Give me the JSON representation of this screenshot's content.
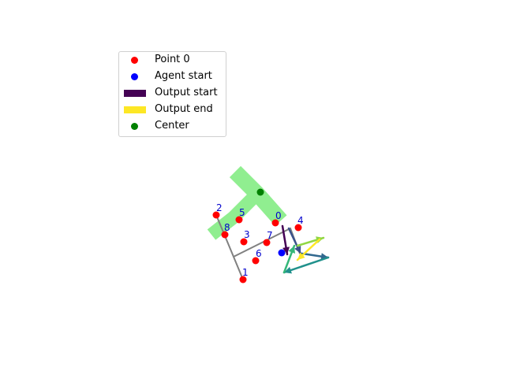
{
  "legend": {
    "items": [
      {
        "label": "Point 0",
        "kind": "dot",
        "color": "#ff0000"
      },
      {
        "label": "Agent start",
        "kind": "dot",
        "color": "#0000ff"
      },
      {
        "label": "Output start",
        "kind": "patch",
        "color": "#440154"
      },
      {
        "label": "Output end",
        "kind": "patch",
        "color": "#fde725"
      },
      {
        "label": "Center",
        "kind": "dot",
        "color": "#008000"
      }
    ]
  },
  "colors": {
    "region": "#90ee90",
    "path": "#808080",
    "point": "#ff0000",
    "point_label": "#0000cc",
    "agent": "#0000ff",
    "center": "#008000"
  },
  "points": [
    {
      "label": "0"
    },
    {
      "label": "1"
    },
    {
      "label": "2"
    },
    {
      "label": "3"
    },
    {
      "label": "4"
    },
    {
      "label": "5"
    },
    {
      "label": "6"
    },
    {
      "label": "7"
    },
    {
      "label": "8"
    }
  ]
}
